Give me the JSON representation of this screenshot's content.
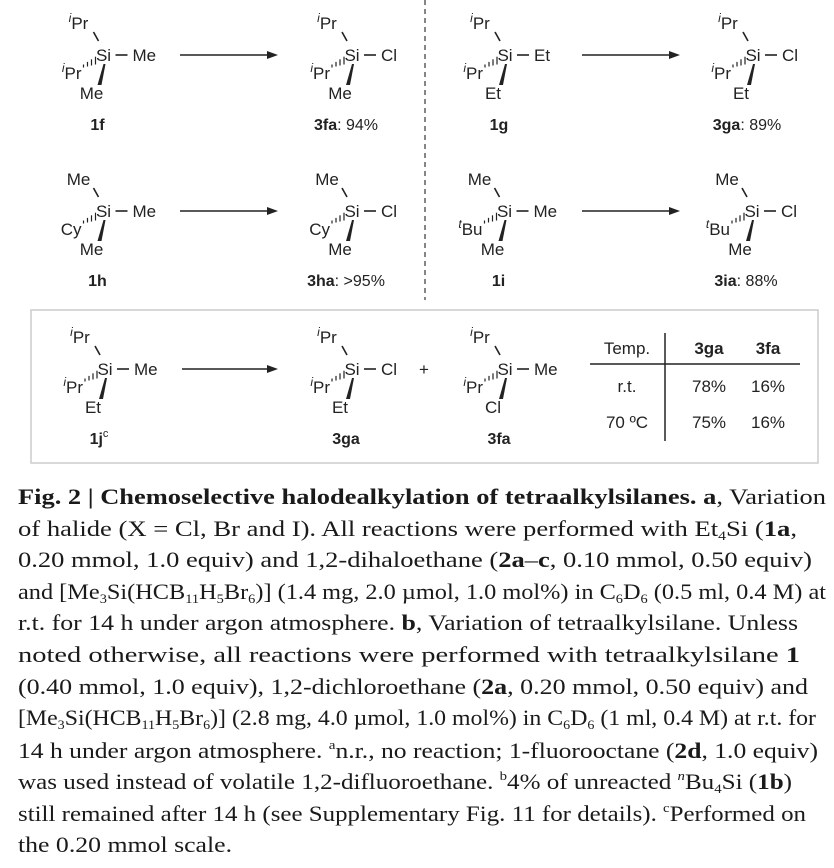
{
  "colors": {
    "silicon": "#c23a4f",
    "chlorine": "#2fa57c",
    "text": "#222222"
  },
  "molecules": [
    {
      "id": "1f",
      "top": {
        "sup": "i",
        "t": "Pr"
      },
      "left": {
        "sup": "i",
        "t": "Pr"
      },
      "right": {
        "t": "Me"
      },
      "bottom": {
        "t": "Me"
      },
      "label": {
        "bold": "1f",
        "rest": ""
      }
    },
    {
      "id": "3fa",
      "top": {
        "sup": "i",
        "t": "Pr"
      },
      "left": {
        "sup": "i",
        "t": "Pr"
      },
      "right": {
        "t": "Cl"
      },
      "bottom": {
        "t": "Me"
      },
      "label": {
        "bold": "3fa",
        "rest": ": 94%"
      }
    },
    {
      "id": "1g",
      "top": {
        "sup": "i",
        "t": "Pr"
      },
      "left": {
        "sup": "i",
        "t": "Pr"
      },
      "right": {
        "t": "Et"
      },
      "bottom": {
        "t": "Et"
      },
      "label": {
        "bold": "1g",
        "rest": ""
      }
    },
    {
      "id": "3ga",
      "top": {
        "sup": "i",
        "t": "Pr"
      },
      "left": {
        "sup": "i",
        "t": "Pr"
      },
      "right": {
        "t": "Cl"
      },
      "bottom": {
        "t": "Et"
      },
      "label": {
        "bold": "3ga",
        "rest": ": 89%"
      }
    },
    {
      "id": "1h",
      "top": {
        "t": "Me"
      },
      "left": {
        "t": "Cy"
      },
      "right": {
        "t": "Me"
      },
      "bottom": {
        "t": "Me"
      },
      "label": {
        "bold": "1h",
        "rest": ""
      }
    },
    {
      "id": "3ha",
      "top": {
        "t": "Me"
      },
      "left": {
        "t": "Cy"
      },
      "right": {
        "t": "Cl"
      },
      "bottom": {
        "t": "Me"
      },
      "label": {
        "bold": "3ha",
        "rest": ": >95%"
      }
    },
    {
      "id": "1i",
      "top": {
        "t": "Me"
      },
      "left": {
        "sup": "t",
        "t": "Bu"
      },
      "right": {
        "t": "Me"
      },
      "bottom": {
        "t": "Me"
      },
      "label": {
        "bold": "1i",
        "rest": ""
      }
    },
    {
      "id": "3ia",
      "top": {
        "t": "Me"
      },
      "left": {
        "sup": "t",
        "t": "Bu"
      },
      "right": {
        "t": "Cl"
      },
      "bottom": {
        "t": "Me"
      },
      "label": {
        "bold": "3ia",
        "rest": ": 88%"
      }
    },
    {
      "id": "1j",
      "top": {
        "sup": "i",
        "t": "Pr"
      },
      "left": {
        "sup": "i",
        "t": "Pr"
      },
      "right": {
        "t": "Me"
      },
      "bottom": {
        "t": "Et"
      },
      "label": {
        "bold": "1j",
        "rest": "",
        "sup": "c"
      }
    },
    {
      "id": "3ga-b",
      "top": {
        "sup": "i",
        "t": "Pr"
      },
      "left": {
        "sup": "i",
        "t": "Pr"
      },
      "right": {
        "t": "Cl"
      },
      "bottom": {
        "t": "Et"
      },
      "label": {
        "bold": "3ga",
        "rest": ""
      }
    },
    {
      "id": "3fa-b",
      "top": {
        "sup": "i",
        "t": "Pr"
      },
      "left": {
        "sup": "i",
        "t": "Pr"
      },
      "right": {
        "t": "Me"
      },
      "bottom": {
        "t": "Cl"
      },
      "label": {
        "bold": "3fa",
        "rest": ""
      }
    }
  ],
  "center_atom": "Si",
  "plus_sign": "+",
  "table": {
    "headers": [
      "Temp.",
      "3ga",
      "3fa"
    ],
    "rows": [
      [
        "r.t.",
        "78%",
        "16%"
      ],
      [
        "70 ºC",
        "75%",
        "16%"
      ]
    ]
  },
  "caption": [
    [
      {
        "t": "Fig. 2 | Chemoselective halodealkylation of tetraalkylsilanes. a",
        "s": "b"
      },
      {
        "t": ", Variation"
      }
    ],
    [
      {
        "t": "of halide (X = Cl, Br and I). All reactions were performed with Et"
      },
      {
        "t": "4",
        "s": "sub"
      },
      {
        "t": "Si ("
      },
      {
        "t": "1a",
        "s": "b"
      },
      {
        "t": ","
      }
    ],
    [
      {
        "t": "0.20 mmol, 1.0 equiv) and 1,2-dihaloethane ("
      },
      {
        "t": "2a",
        "s": "b"
      },
      {
        "t": "–"
      },
      {
        "t": "c",
        "s": "b"
      },
      {
        "t": ", 0.10 mmol, 0.50 equiv)"
      }
    ],
    [
      {
        "t": "and [Me"
      },
      {
        "t": "3",
        "s": "sub"
      },
      {
        "t": "Si(HCB"
      },
      {
        "t": "11",
        "s": "sub"
      },
      {
        "t": "H"
      },
      {
        "t": "5",
        "s": "sub"
      },
      {
        "t": "Br"
      },
      {
        "t": "6",
        "s": "sub"
      },
      {
        "t": ")] (1.4 mg, 2.0 µmol, 1.0 mol%) in C"
      },
      {
        "t": "6",
        "s": "sub"
      },
      {
        "t": "D"
      },
      {
        "t": "6",
        "s": "sub"
      },
      {
        "t": " (0.5 ml, 0.4 M) at"
      }
    ],
    [
      {
        "t": "r.t. for 14 h under argon atmosphere. "
      },
      {
        "t": "b",
        "s": "b"
      },
      {
        "t": ", Variation of tetraalkylsilane. Unless"
      }
    ],
    [
      {
        "t": "noted otherwise, all reactions were performed with tetraalkylsilane "
      },
      {
        "t": "1",
        "s": "b"
      }
    ],
    [
      {
        "t": "(0.40 mmol, 1.0 equiv), 1,2-dichloroethane ("
      },
      {
        "t": "2a",
        "s": "b"
      },
      {
        "t": ", 0.20 mmol, 0.50 equiv) and"
      }
    ],
    [
      {
        "t": "[Me"
      },
      {
        "t": "3",
        "s": "sub"
      },
      {
        "t": "Si(HCB"
      },
      {
        "t": "11",
        "s": "sub"
      },
      {
        "t": "H"
      },
      {
        "t": "5",
        "s": "sub"
      },
      {
        "t": "Br"
      },
      {
        "t": "6",
        "s": "sub"
      },
      {
        "t": ")] (2.8 mg, 4.0 µmol, 1.0 mol%) in C"
      },
      {
        "t": "6",
        "s": "sub"
      },
      {
        "t": "D"
      },
      {
        "t": "6",
        "s": "sub"
      },
      {
        "t": " (1 ml, 0.4 M) at r.t. for"
      }
    ],
    [
      {
        "t": "14 h under argon atmosphere. "
      },
      {
        "t": "a",
        "s": "sup"
      },
      {
        "t": "n.r., no reaction; 1-fluorooctane ("
      },
      {
        "t": "2d",
        "s": "b"
      },
      {
        "t": ", 1.0 equiv)"
      }
    ],
    [
      {
        "t": "was used instead of volatile 1,2-difluoroethane. "
      },
      {
        "t": "b",
        "s": "sup"
      },
      {
        "t": "4% of unreacted "
      },
      {
        "t": "n",
        "s": "sup i"
      },
      {
        "t": "Bu"
      },
      {
        "t": "4",
        "s": "sub"
      },
      {
        "t": "Si ("
      },
      {
        "t": "1b",
        "s": "b"
      },
      {
        "t": ")"
      }
    ],
    [
      {
        "t": "still remained after 14 h (see Supplementary Fig. 11 for details). "
      },
      {
        "t": "c",
        "s": "sup"
      },
      {
        "t": "Performed on"
      }
    ],
    [
      {
        "t": "the 0.20 mmol scale."
      }
    ]
  ]
}
